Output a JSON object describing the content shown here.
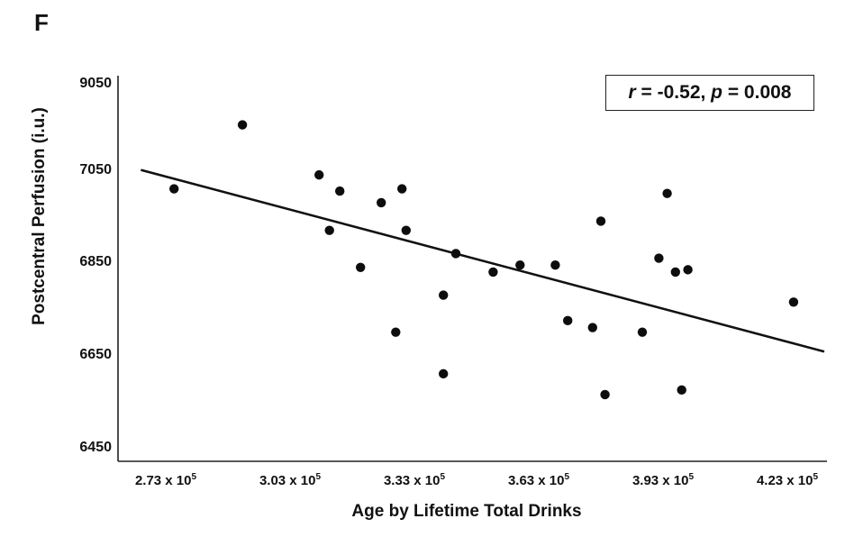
{
  "panel_label": "F",
  "annotation": {
    "r_symbol": "r",
    "r_text": " = -0.52, ",
    "p_symbol": "p",
    "p_text": " = 0.008"
  },
  "chart_data": {
    "type": "scatter",
    "xlabel": "Age by Lifetime Total Drinks",
    "ylabel": "Postcentral Perfusion (i.u.)",
    "x_tick_labels": [
      {
        "base": "2.73 x 10",
        "exp": "5",
        "value": 273000
      },
      {
        "base": "3.03 x 10",
        "exp": "5",
        "value": 303000
      },
      {
        "base": "3.33 x 10",
        "exp": "5",
        "value": 333000
      },
      {
        "base": "3.63 x 10",
        "exp": "5",
        "value": 363000
      },
      {
        "base": "3.93 x 10",
        "exp": "5",
        "value": 393000
      },
      {
        "base": "4.23 x 10",
        "exp": "5",
        "value": 423000
      }
    ],
    "y_tick_labels": [
      {
        "label": "9050",
        "value": 9050
      },
      {
        "label": "7050",
        "value": 7050
      },
      {
        "label": "6850",
        "value": 6850
      },
      {
        "label": "6650",
        "value": 6650
      },
      {
        "label": "6450",
        "value": 6450
      }
    ],
    "y_axis_note": "broken axis: 9050 tick sits one interval above 7050",
    "points": [
      {
        "x": 275000,
        "y": 7010
      },
      {
        "x": 291500,
        "y": 8100
      },
      {
        "x": 310000,
        "y": 7040
      },
      {
        "x": 312500,
        "y": 6920
      },
      {
        "x": 315000,
        "y": 7005
      },
      {
        "x": 320000,
        "y": 6840
      },
      {
        "x": 325000,
        "y": 6980
      },
      {
        "x": 328500,
        "y": 6700
      },
      {
        "x": 330000,
        "y": 7010
      },
      {
        "x": 331000,
        "y": 6920
      },
      {
        "x": 340000,
        "y": 6780
      },
      {
        "x": 340000,
        "y": 6610
      },
      {
        "x": 343000,
        "y": 6870
      },
      {
        "x": 352000,
        "y": 6830
      },
      {
        "x": 358500,
        "y": 6845
      },
      {
        "x": 367000,
        "y": 6845
      },
      {
        "x": 370000,
        "y": 6725
      },
      {
        "x": 376000,
        "y": 6710
      },
      {
        "x": 378000,
        "y": 6940
      },
      {
        "x": 379000,
        "y": 6565
      },
      {
        "x": 388000,
        "y": 6700
      },
      {
        "x": 392000,
        "y": 6860
      },
      {
        "x": 394000,
        "y": 7000
      },
      {
        "x": 396000,
        "y": 6830
      },
      {
        "x": 397500,
        "y": 6575
      },
      {
        "x": 399000,
        "y": 6835
      },
      {
        "x": 424500,
        "y": 6765
      }
    ],
    "fit_line": {
      "x": [
        267000,
        442000
      ],
      "y": [
        7058,
        6658
      ]
    },
    "grid": false,
    "legend": "none"
  }
}
